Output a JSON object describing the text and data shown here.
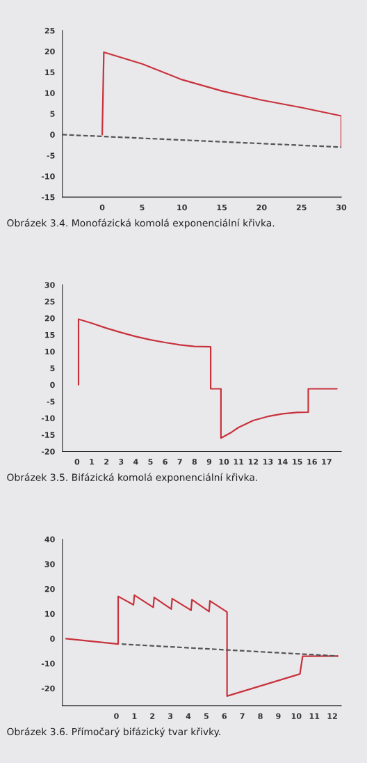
{
  "chart_data": [
    {
      "type": "line",
      "xlim": [
        -5,
        30
      ],
      "xticks": [
        0,
        5,
        10,
        15,
        20,
        25,
        30
      ],
      "ylim": [
        -15,
        25
      ],
      "yticks": [
        -15,
        -10,
        -5,
        0,
        5,
        10,
        15,
        20,
        25
      ],
      "grid": false,
      "legend": false,
      "annotations": [
        "Obrázek 3.4. Monofázická komolá exponenciální křivka."
      ],
      "series": [
        {
          "color": "#c8323c",
          "line_style": "solid",
          "x": [
            0,
            0.2,
            5,
            10,
            15,
            20,
            25,
            30,
            30
          ],
          "values": [
            0,
            19.8,
            17,
            13.2,
            10.5,
            8.3,
            6.5,
            4.5,
            -3
          ]
        },
        {
          "color": "#555555",
          "line_style": "dashed",
          "x": [
            -5,
            30
          ],
          "values": [
            0,
            -3
          ]
        }
      ]
    },
    {
      "type": "line",
      "xlim": [
        -1,
        18
      ],
      "xticks": [
        0,
        1,
        2,
        3,
        4,
        5,
        6,
        7,
        8,
        9,
        10,
        11,
        12,
        13,
        14,
        15,
        16,
        17
      ],
      "ylim": [
        -20,
        30
      ],
      "yticks": [
        -20,
        -15,
        -10,
        -5,
        0,
        5,
        10,
        15,
        20,
        25,
        30
      ],
      "grid": false,
      "legend": false,
      "annotations": [
        "Obrázek 3.5. Bifázická komolá exponenciální křivka."
      ],
      "series": [
        {
          "color": "#c8323c",
          "line_style": "solid",
          "x": [
            0.1,
            0.1,
            1,
            2,
            3,
            4,
            5,
            6,
            7,
            8,
            9.1,
            9.1,
            9.8,
            9.8,
            10.5,
            11,
            12,
            13,
            14,
            15,
            15.75,
            15.75,
            17.7
          ],
          "values": [
            0,
            19.7,
            18.5,
            17,
            15.7,
            14.5,
            13.5,
            12.7,
            12,
            11.5,
            11.4,
            -1.2,
            -1.2,
            -16,
            -14.3,
            -12.8,
            -10.7,
            -9.5,
            -8.7,
            -8.3,
            -8.2,
            -1.2,
            -1.2
          ]
        }
      ]
    },
    {
      "type": "line",
      "xlim": [
        -3,
        12.5
      ],
      "xticks": [
        0,
        1,
        2,
        3,
        4,
        5,
        6,
        7,
        8,
        9,
        10,
        11,
        12
      ],
      "ylim": [
        -27,
        40
      ],
      "yticks": [
        -20,
        -10,
        0,
        10,
        20,
        30,
        40
      ],
      "grid": false,
      "legend": false,
      "annotations": [
        "Obrázek 3.6. Přímočarý bifázický tvar křivky."
      ],
      "series": [
        {
          "color": "#c8323c",
          "line_style": "solid",
          "x": [
            -2.8,
            0.1,
            0.1,
            0.95,
            1.0,
            2.05,
            2.1,
            3.05,
            3.1,
            4.15,
            4.2,
            5.15,
            5.2,
            6.15,
            6.15,
            10.2,
            10.35,
            12.3
          ],
          "values": [
            0,
            -2.2,
            17,
            13.6,
            17.5,
            12.6,
            16.6,
            11.9,
            16.1,
            11.4,
            15.7,
            10.9,
            15.2,
            10.7,
            -23.1,
            -14.2,
            -7.1,
            -7
          ]
        },
        {
          "color": "#555555",
          "line_style": "dashed",
          "x": [
            0.3,
            12.3
          ],
          "values": [
            -2.2,
            -7
          ]
        }
      ]
    }
  ]
}
